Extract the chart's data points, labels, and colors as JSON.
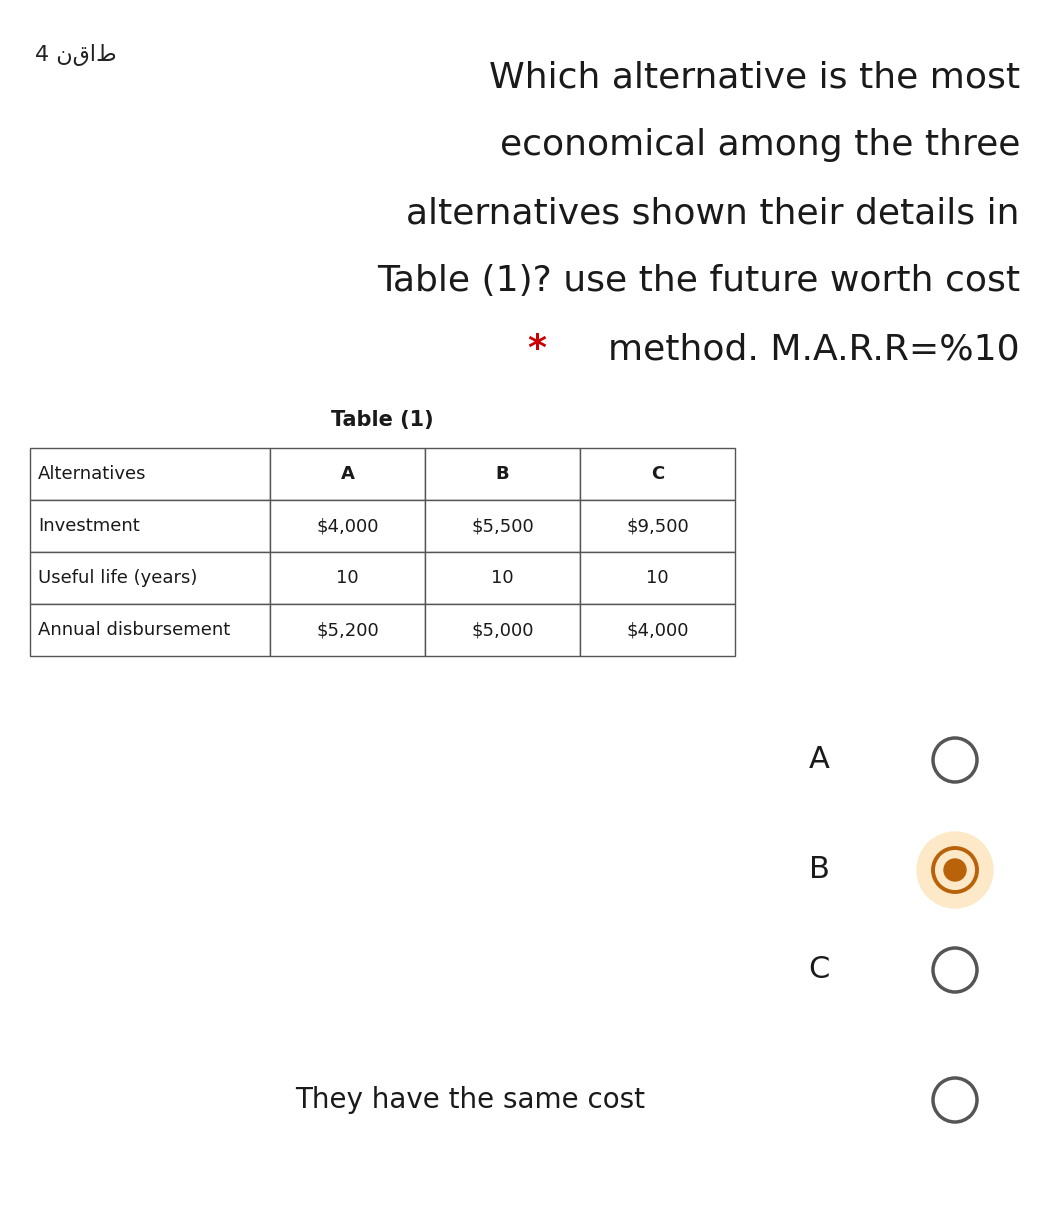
{
  "bg_color": "#ffffff",
  "points_label": "4 نقاط",
  "question_lines": [
    "Which alternative is the most",
    "economical among the three",
    "alternatives shown their details in",
    "Table (1)? use the future worth cost"
  ],
  "last_line_prefix": "* ",
  "last_line_text": "method. M.A.R.R=%10",
  "star_color": "#cc0000",
  "table_title": "Table (1)",
  "table_rows": [
    [
      "Alternatives",
      "A",
      "B",
      "C"
    ],
    [
      "Investment",
      "$4,000",
      "$5,500",
      "$9,500"
    ],
    [
      "Useful life (years)",
      "10",
      "10",
      "10"
    ],
    [
      "Annual disbursement",
      "$5,200",
      "$5,000",
      "$4,000"
    ]
  ],
  "options": [
    "A",
    "B",
    "C",
    "They have the same cost"
  ],
  "selected_option": 1,
  "radio_color_normal": "#555555",
  "radio_color_selected_outer": "#b8620a",
  "radio_color_selected_inner": "#b8620a",
  "radio_selected_bg": "#fde8c8",
  "question_fontsize": 26,
  "points_fontsize": 16,
  "table_fontsize": 14,
  "option_fontsize": 22
}
